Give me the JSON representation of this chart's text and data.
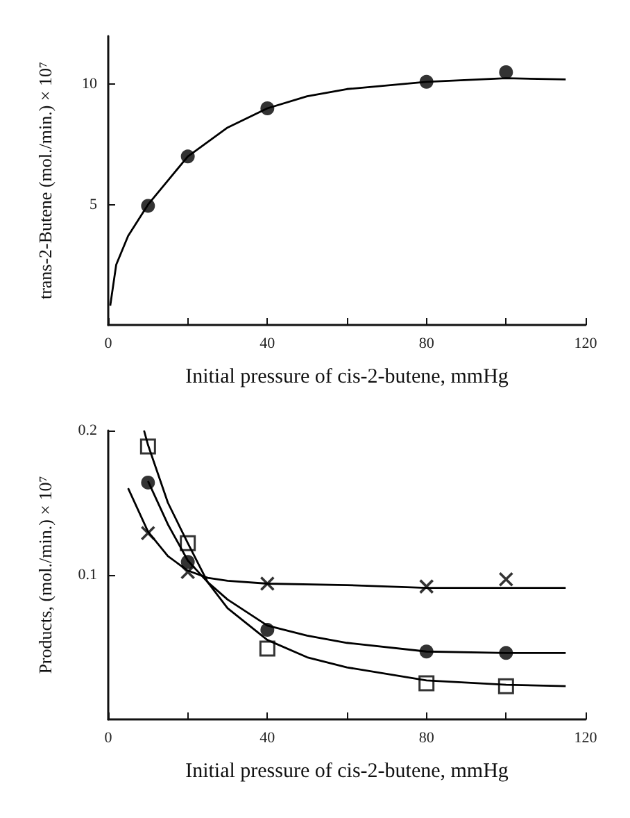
{
  "chart_data": [
    {
      "type": "scatter",
      "xlabel": "Initial pressure of cis-2-butene, mmHg",
      "ylabel": "trans-2-Butene (mol./min.) × 10⁷",
      "xlim": [
        0,
        120
      ],
      "ylim": [
        0,
        12
      ],
      "xticks": [
        0,
        {
          "value": 20,
          "label": null
        },
        40,
        {
          "value": 60,
          "label": null
        },
        80,
        {
          "value": 100,
          "label": null
        },
        120
      ],
      "yticks": [
        5,
        10
      ],
      "grid": false,
      "series": [
        {
          "marker": "circle",
          "color": "#000000",
          "x": [
            10,
            20,
            40,
            80,
            100
          ],
          "values": [
            4.95,
            7.0,
            9.0,
            10.1,
            10.5
          ]
        },
        {
          "type": "line",
          "marker": "none",
          "color": "#000000",
          "x": [
            0.5,
            2,
            5,
            10,
            20,
            30,
            40,
            50,
            60,
            80,
            100,
            115
          ],
          "values": [
            0.8,
            2.5,
            3.7,
            5,
            7,
            8.2,
            9,
            9.5,
            9.8,
            10.1,
            10.25,
            10.2
          ]
        }
      ]
    },
    {
      "type": "scatter",
      "xlabel": "Initial pressure of cis-2-butene, mmHg",
      "ylabel": "Products, (mol./min.) × 10⁷",
      "xlim": [
        0,
        120
      ],
      "ylim": [
        0,
        0.2
      ],
      "xticks": [
        0,
        {
          "value": 20,
          "label": null
        },
        40,
        {
          "value": 60,
          "label": null
        },
        80,
        {
          "value": 100,
          "label": null
        },
        120
      ],
      "yticks": [
        0.1,
        0.2
      ],
      "grid": false,
      "series": [
        {
          "marker": "square",
          "color": "#000000",
          "x": [
            10,
            20,
            40,
            80,
            100
          ],
          "values": [
            0.189,
            0.122,
            0.049,
            0.025,
            0.023
          ]
        },
        {
          "marker": "circle",
          "color": "#000000",
          "x": [
            10,
            20,
            40,
            80,
            100
          ],
          "values": [
            0.164,
            0.109,
            0.062,
            0.047,
            0.046
          ]
        },
        {
          "marker": "cross",
          "color": "#000000",
          "x": [
            10,
            20,
            40,
            80,
            100
          ],
          "values": [
            0.129,
            0.102,
            0.094,
            0.092,
            0.097
          ]
        },
        {
          "type": "line",
          "marker": "none",
          "color": "#000000",
          "x": [
            9,
            10,
            15,
            20,
            25,
            30,
            40,
            50,
            60,
            80,
            100,
            115
          ],
          "values": [
            0.2,
            0.19,
            0.15,
            0.122,
            0.095,
            0.077,
            0.055,
            0.043,
            0.036,
            0.027,
            0.024,
            0.023
          ]
        },
        {
          "type": "line",
          "marker": "none",
          "color": "#000000",
          "x": [
            10,
            15,
            20,
            25,
            30,
            40,
            50,
            60,
            80,
            100,
            115
          ],
          "values": [
            0.165,
            0.135,
            0.11,
            0.095,
            0.083,
            0.065,
            0.058,
            0.053,
            0.047,
            0.046,
            0.046
          ]
        },
        {
          "type": "line",
          "marker": "none",
          "color": "#000000",
          "x": [
            5,
            10,
            15,
            20,
            25,
            30,
            40,
            60,
            80,
            100,
            115
          ],
          "values": [
            0.16,
            0.13,
            0.113,
            0.103,
            0.098,
            0.096,
            0.094,
            0.093,
            0.091,
            0.091,
            0.091
          ]
        }
      ]
    }
  ]
}
